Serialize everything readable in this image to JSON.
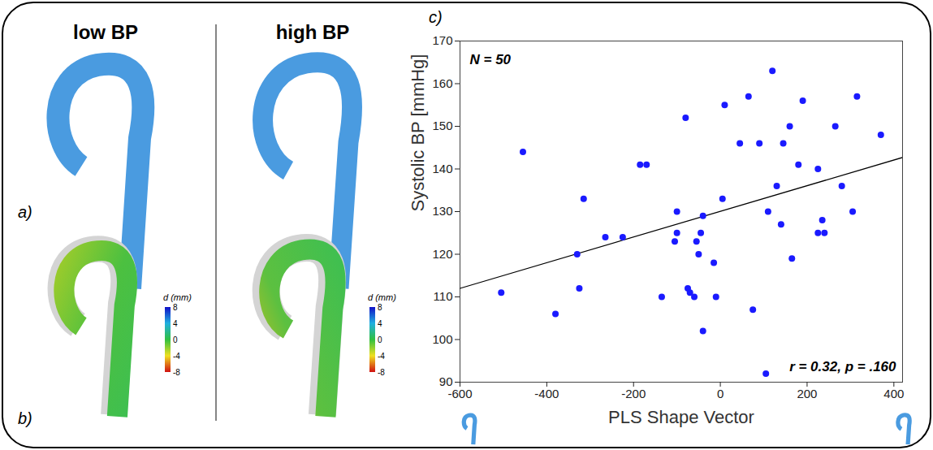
{
  "chart_data": {
    "type": "scatter",
    "x_label": "PLS Shape Vector",
    "y_label": "Systolic BP [mmHg]",
    "annotations": [
      "N = 50",
      "r = 0.32, p = .160"
    ],
    "x": [
      -505,
      -455,
      -380,
      -330,
      -325,
      -315,
      -265,
      -225,
      -185,
      -170,
      -135,
      -105,
      -100,
      -100,
      -80,
      -75,
      -70,
      -60,
      -55,
      -50,
      -45,
      -40,
      -40,
      -15,
      -10,
      5,
      10,
      45,
      65,
      75,
      90,
      105,
      110,
      120,
      130,
      140,
      145,
      160,
      165,
      180,
      190,
      225,
      225,
      235,
      240,
      265,
      280,
      305,
      315,
      370
    ],
    "values": [
      111,
      144,
      106,
      120,
      112,
      133,
      124,
      124,
      141,
      141,
      110,
      123,
      125,
      130,
      152,
      112,
      111,
      110,
      123,
      120,
      125,
      102,
      129,
      118,
      110,
      133,
      155,
      146,
      157,
      107,
      146,
      92,
      130,
      163,
      136,
      127,
      146,
      150,
      119,
      141,
      156,
      140,
      125,
      128,
      125,
      150,
      136,
      130,
      157,
      148
    ],
    "color": "#1a1aff",
    "marker": "circle",
    "trend_line": {
      "x": [
        -600,
        420
      ],
      "y": [
        112,
        142.7
      ],
      "color": "#000000"
    },
    "xlim": [
      -600,
      420
    ],
    "ylim": [
      90,
      170
    ],
    "xticks": [
      -600,
      -400,
      -200,
      0,
      200,
      400
    ],
    "yticks": [
      90,
      100,
      110,
      120,
      130,
      140,
      150,
      160,
      170
    ],
    "grid": false
  },
  "figure": {
    "panel_labels": [
      "a)",
      "b)",
      "c)"
    ],
    "columns": [
      "low BP",
      "high BP"
    ],
    "colorbar": {
      "label": "d (mm)",
      "range": [
        -8,
        8
      ],
      "ticks": [
        8,
        4,
        0,
        -4,
        -8
      ]
    }
  }
}
